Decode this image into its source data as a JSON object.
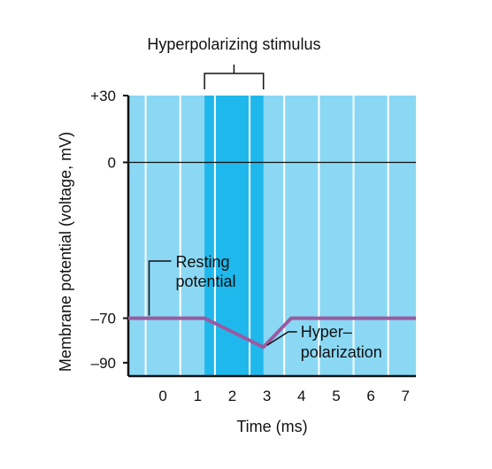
{
  "chart_data": {
    "type": "line",
    "title": "Hyperpolarizing stimulus",
    "xlabel": "Time (ms)",
    "ylabel": "Membrane potential (voltage, mV)",
    "xlim": [
      -1,
      7.3
    ],
    "ylim": [
      -96,
      30
    ],
    "x_ticks": [
      "0",
      "1",
      "2",
      "3",
      "4",
      "5",
      "6",
      "7"
    ],
    "x_tick_values": [
      0,
      1,
      2,
      3,
      4,
      5,
      6,
      7
    ],
    "y_ticks": [
      "+30",
      "0",
      "–70",
      "–90"
    ],
    "y_tick_values": [
      30,
      0,
      -70,
      -90
    ],
    "zero_line": true,
    "grid": "vertical",
    "stimulus_interval": [
      1.2,
      2.9
    ],
    "series": [
      {
        "x": [
          -1,
          1.2,
          2.9,
          3.7,
          7.3
        ],
        "y": [
          -70,
          -70,
          -83,
          -70,
          -70
        ]
      }
    ],
    "annotations": [
      {
        "text": [
          "Resting",
          "potential"
        ],
        "x": -0.4,
        "y": -70
      },
      {
        "text": [
          "Hyper–",
          "polarization"
        ],
        "x": 2.9,
        "y": -83
      }
    ],
    "colors": {
      "background": "#8ad8f4",
      "stimulus": "#1fb8ec",
      "grid": "#ffffff",
      "line": "#9b5aa0"
    }
  }
}
